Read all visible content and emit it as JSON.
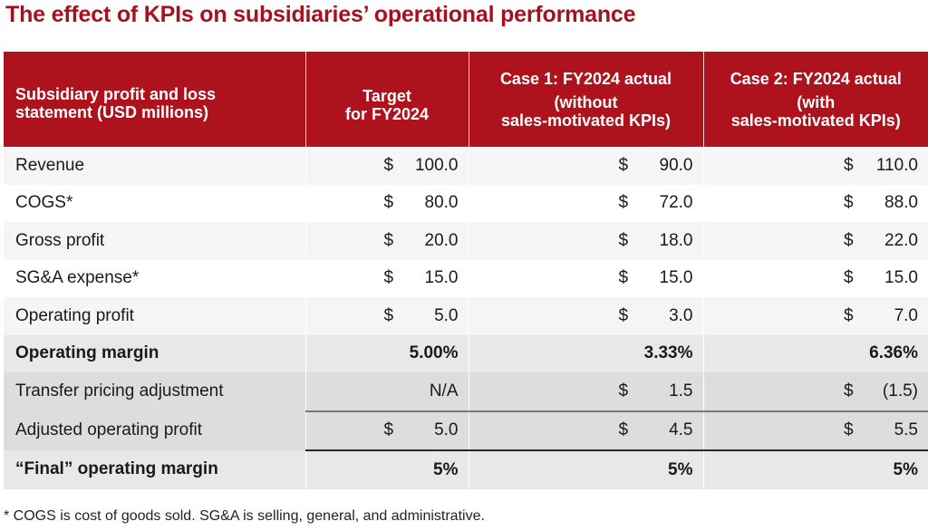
{
  "title": "The effect of KPIs on subsidiaries’ operational performance",
  "table": {
    "headers": [
      {
        "line1": "Subsidiary profit and loss",
        "line2": "statement (USD millions)"
      },
      {
        "line1": "Target",
        "line2": "for FY2024"
      },
      {
        "line1": "Case 1: FY2024 actual",
        "line2": "(without",
        "line3": "sales-motivated KPIs)"
      },
      {
        "line1": "Case 2: FY2024 actual",
        "line2": "(with",
        "line3": "sales-motivated KPIs)"
      }
    ],
    "rows": [
      {
        "label": "Revenue",
        "style": "alt",
        "cells": [
          {
            "cur": "$",
            "amt": "100.0"
          },
          {
            "cur": "$",
            "amt": "90.0"
          },
          {
            "cur": "$",
            "amt": "110.0"
          }
        ]
      },
      {
        "label": "COGS*",
        "style": "plain",
        "cells": [
          {
            "cur": "$",
            "amt": "80.0"
          },
          {
            "cur": "$",
            "amt": "72.0"
          },
          {
            "cur": "$",
            "amt": "88.0"
          }
        ]
      },
      {
        "label": "Gross profit",
        "style": "alt",
        "cells": [
          {
            "cur": "$",
            "amt": "20.0"
          },
          {
            "cur": "$",
            "amt": "18.0"
          },
          {
            "cur": "$",
            "amt": "22.0"
          }
        ]
      },
      {
        "label": "SG&A expense*",
        "style": "plain",
        "cells": [
          {
            "cur": "$",
            "amt": "15.0"
          },
          {
            "cur": "$",
            "amt": "15.0"
          },
          {
            "cur": "$",
            "amt": "15.0"
          }
        ]
      },
      {
        "label": "Operating profit",
        "style": "alt",
        "cells": [
          {
            "cur": "$",
            "amt": "5.0"
          },
          {
            "cur": "$",
            "amt": "3.0"
          },
          {
            "cur": "$",
            "amt": "7.0"
          }
        ]
      },
      {
        "label": "Operating margin",
        "style": "margin",
        "cells": [
          {
            "text": "5.00%"
          },
          {
            "text": "3.33%"
          },
          {
            "text": "6.36%"
          }
        ]
      },
      {
        "label": "Transfer pricing adjustment",
        "style": "dark",
        "cells": [
          {
            "text": "N/A"
          },
          {
            "cur": "$",
            "amt": "1.5"
          },
          {
            "cur": "$",
            "amt": "(1.5)"
          }
        ]
      },
      {
        "label": "Adjusted operating profit",
        "style": "dark",
        "cells": [
          {
            "cur": "$",
            "amt": "5.0"
          },
          {
            "cur": "$",
            "amt": "4.5"
          },
          {
            "cur": "$",
            "amt": "5.5"
          }
        ]
      },
      {
        "label": "“Final” operating margin",
        "style": "final",
        "cells": [
          {
            "text": "5%"
          },
          {
            "text": "5%"
          },
          {
            "text": "5%"
          }
        ]
      }
    ]
  },
  "footnote": "* COGS is cost of goods sold. SG&A is selling, general, and administrative.",
  "colors": {
    "title": "#a5121d",
    "header_bg": "#ae121c",
    "row_alt": "#f5f5f6",
    "row_margin": "#e7e8ea",
    "row_dark": "#dcdddf"
  }
}
